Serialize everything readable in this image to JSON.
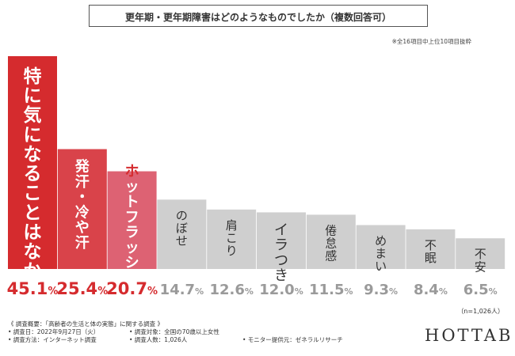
{
  "title": "更年期・更年期障害はどのようなものでしたか（複数回答可）",
  "note": "※全16項目中上位10項目抜粋",
  "sample_size": "（n=1,026人）",
  "survey": {
    "heading": "《 調査概要：「高齢者の生活と体の実態」に関する調査 》",
    "date": "• 調査日：2022年9月27日（火）",
    "method": "• 調査方法：インターネット調査",
    "target": "• 調査対象：全国の70歳以上女性",
    "count": "• 調査人数：1,026人",
    "provider": "• モニター提供元：ゼネラルリサーチ"
  },
  "brand": "HOTTAB",
  "colors": {
    "top1": "#d52b2e",
    "top2": "#d9434a",
    "top3": "#dd6273",
    "others": "#cfcfcf",
    "top_label": "#d52b2e",
    "other_label": "#9a9a9a",
    "bar_text": "#ffffff",
    "bar_text_dark": "#333333"
  },
  "chart_data": {
    "type": "bar",
    "title": "更年期・更年期障害はどのようなものでしたか（複数回答可）",
    "unit": "%",
    "categories": [
      "特に気になることはなかった",
      "発汗・冷や汗",
      "ホットフラッシュ",
      "のぼせ",
      "肩こり",
      "イラつき",
      "倦怠感",
      "めまい",
      "不眠",
      "不安"
    ],
    "values": [
      45.1,
      25.4,
      20.7,
      14.7,
      12.6,
      12.0,
      11.5,
      9.3,
      8.4,
      6.5
    ],
    "value_labels": [
      "45.1%",
      "25.4%",
      "20.7%",
      "14.7%",
      "12.6%",
      "12.0%",
      "11.5%",
      "9.3%",
      "8.4%",
      "6.5%"
    ],
    "ylim": [
      0,
      45.1
    ],
    "grid": false,
    "legend": "none"
  }
}
